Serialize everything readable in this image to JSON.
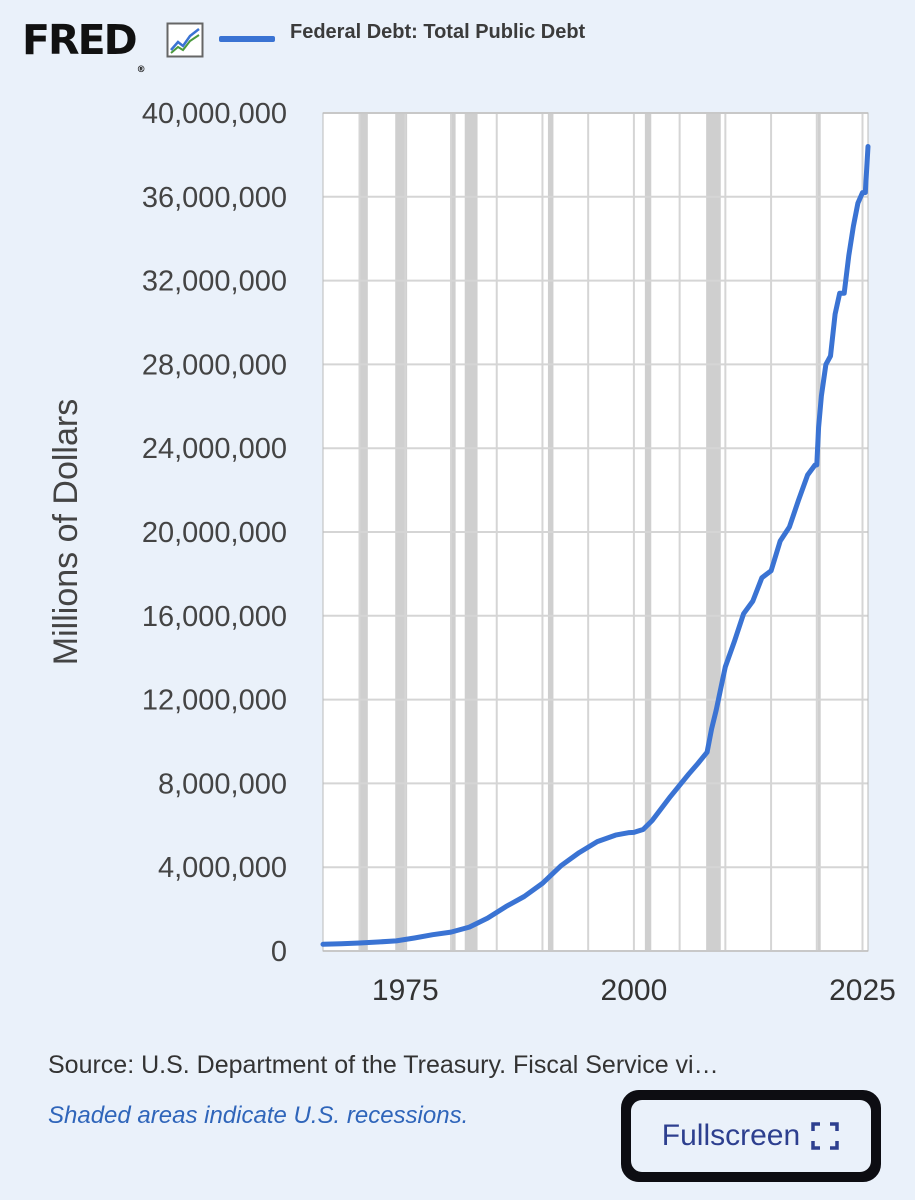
{
  "header": {
    "logo_text": "FRED",
    "logo_reg": "®",
    "legend_label": "Federal Debt: Total Public Debt",
    "series_color": "#3a73d3"
  },
  "footer": {
    "source": "Source: U.S. Department of the Treasury. Fiscal Service vi…",
    "note": "Shaded areas indicate U.S. recessions.",
    "fullscreen_label": "Fullscreen"
  },
  "chart_data": {
    "type": "line",
    "title": "Federal Debt: Total Public Debt",
    "ylabel": "Millions of Dollars",
    "xlabel": "",
    "xlim": [
      1966,
      2025.6
    ],
    "ylim": [
      0,
      40000000
    ],
    "x_ticks": [
      1975,
      2000,
      2025
    ],
    "y_ticks": [
      0,
      4000000,
      8000000,
      12000000,
      16000000,
      20000000,
      24000000,
      28000000,
      32000000,
      36000000,
      40000000
    ],
    "y_tick_labels": [
      "0",
      "4,000,000",
      "8,000,000",
      "12,000,000",
      "16,000,000",
      "20,000,000",
      "24,000,000",
      "28,000,000",
      "32,000,000",
      "36,000,000",
      "40,000,000"
    ],
    "x_tick_labels": [
      "1975",
      "2000",
      "2025"
    ],
    "grid": true,
    "recessions": [
      [
        1969.9,
        1970.9
      ],
      [
        1973.9,
        1975.2
      ],
      [
        1980.0,
        1980.5
      ],
      [
        1981.5,
        1982.9
      ],
      [
        1990.6,
        1991.2
      ],
      [
        2001.2,
        2001.9
      ],
      [
        2007.9,
        2009.5
      ],
      [
        2020.1,
        2020.4
      ]
    ],
    "series": [
      {
        "name": "Federal Debt: Total Public Debt",
        "x": [
          1966,
          1968,
          1970,
          1972,
          1974,
          1976,
          1978,
          1980,
          1982,
          1984,
          1986,
          1988,
          1990,
          1992,
          1994,
          1996,
          1998,
          1999.5,
          2000,
          2001,
          2002,
          2004,
          2006,
          2007,
          2008,
          2008.5,
          2009,
          2010,
          2011,
          2012,
          2013,
          2014,
          2015,
          2016,
          2017,
          2018,
          2019,
          2019.8,
          2020,
          2020.2,
          2020.5,
          2021,
          2021.5,
          2022,
          2022.5,
          2023,
          2023.5,
          2024,
          2024.5,
          2025,
          2025.3,
          2025.6
        ],
        "values": [
          320000,
          350000,
          380000,
          430000,
          480000,
          620000,
          780000,
          900000,
          1140000,
          1570000,
          2120000,
          2600000,
          3230000,
          4060000,
          4690000,
          5220000,
          5530000,
          5650000,
          5660000,
          5800000,
          6230000,
          7380000,
          8450000,
          8950000,
          9490000,
          10600000,
          11500000,
          13560000,
          14790000,
          16100000,
          16700000,
          17820000,
          18150000,
          19570000,
          20240000,
          21520000,
          22720000,
          23200000,
          23200000,
          25000000,
          26500000,
          28000000,
          28400000,
          30400000,
          31400000,
          31400000,
          33200000,
          34600000,
          35700000,
          36200000,
          36200000,
          38400000
        ]
      }
    ]
  }
}
